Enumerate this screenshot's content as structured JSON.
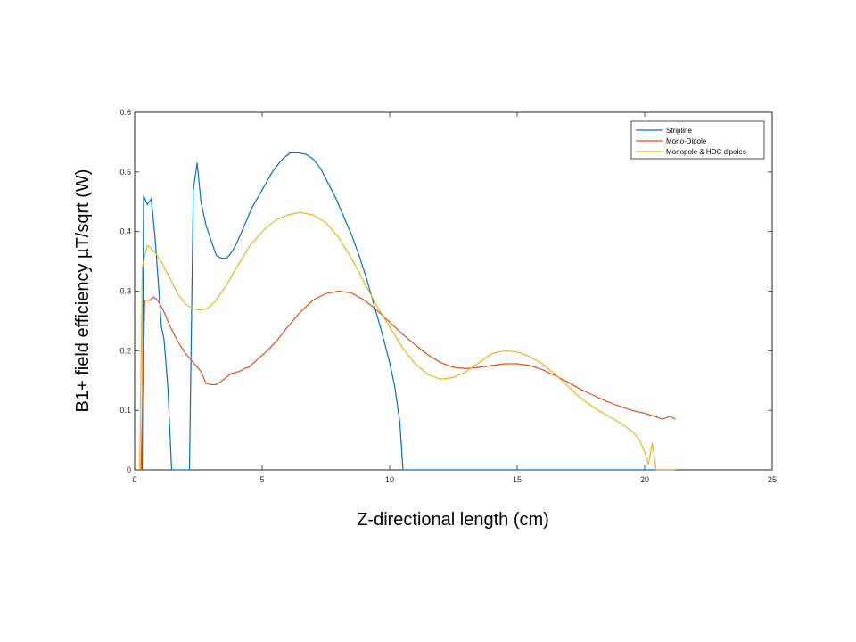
{
  "chart_data": {
    "type": "line",
    "title": "",
    "xlabel": "Z-directional length (cm)",
    "ylabel": "B1+ field efficiency µT/sqrt (W)",
    "xlim": [
      0,
      25
    ],
    "ylim": [
      0,
      0.6
    ],
    "x_ticks": [
      "0",
      "5",
      "10",
      "15",
      "20",
      "25"
    ],
    "y_ticks": [
      "0",
      "0.1",
      "0.2",
      "0.3",
      "0.4",
      "0.5",
      "0.6"
    ],
    "grid": false,
    "legend_position": "top-right",
    "series": [
      {
        "name": "Stripline",
        "color": "#0072BD",
        "points": [
          [
            0.3,
            0
          ],
          [
            0.35,
            0.46
          ],
          [
            0.5,
            0.445
          ],
          [
            0.65,
            0.455
          ],
          [
            0.8,
            0.39
          ],
          [
            0.95,
            0.3
          ],
          [
            1.05,
            0.24
          ],
          [
            1.15,
            0.22
          ],
          [
            1.3,
            0.14
          ],
          [
            1.45,
            0
          ],
          [
            2.15,
            0
          ],
          [
            2.3,
            0.47
          ],
          [
            2.45,
            0.515
          ],
          [
            2.6,
            0.45
          ],
          [
            2.8,
            0.41
          ],
          [
            3.0,
            0.385
          ],
          [
            3.2,
            0.36
          ],
          [
            3.4,
            0.355
          ],
          [
            3.6,
            0.355
          ],
          [
            3.8,
            0.365
          ],
          [
            4.0,
            0.38
          ],
          [
            4.3,
            0.41
          ],
          [
            4.6,
            0.44
          ],
          [
            5.0,
            0.47
          ],
          [
            5.4,
            0.5
          ],
          [
            5.8,
            0.522
          ],
          [
            6.1,
            0.532
          ],
          [
            6.4,
            0.532
          ],
          [
            6.7,
            0.53
          ],
          [
            7.0,
            0.522
          ],
          [
            7.3,
            0.505
          ],
          [
            7.6,
            0.48
          ],
          [
            7.9,
            0.455
          ],
          [
            8.2,
            0.425
          ],
          [
            8.5,
            0.395
          ],
          [
            8.8,
            0.36
          ],
          [
            9.1,
            0.32
          ],
          [
            9.4,
            0.275
          ],
          [
            9.7,
            0.23
          ],
          [
            10.0,
            0.18
          ],
          [
            10.2,
            0.14
          ],
          [
            10.4,
            0.08
          ],
          [
            10.52,
            0
          ],
          [
            21.2,
            0
          ]
        ]
      },
      {
        "name": "Mono-Dipole",
        "color": "#D95319",
        "points": [
          [
            0.25,
            0
          ],
          [
            0.4,
            0.285
          ],
          [
            0.6,
            0.285
          ],
          [
            0.75,
            0.29
          ],
          [
            0.9,
            0.285
          ],
          [
            1.1,
            0.27
          ],
          [
            1.4,
            0.24
          ],
          [
            1.7,
            0.215
          ],
          [
            2.0,
            0.195
          ],
          [
            2.3,
            0.18
          ],
          [
            2.6,
            0.165
          ],
          [
            2.8,
            0.145
          ],
          [
            3.0,
            0.143
          ],
          [
            3.2,
            0.143
          ],
          [
            3.5,
            0.152
          ],
          [
            3.8,
            0.162
          ],
          [
            4.1,
            0.165
          ],
          [
            4.3,
            0.17
          ],
          [
            4.5,
            0.173
          ],
          [
            4.8,
            0.185
          ],
          [
            5.2,
            0.2
          ],
          [
            5.6,
            0.218
          ],
          [
            6.0,
            0.24
          ],
          [
            6.5,
            0.265
          ],
          [
            7.0,
            0.285
          ],
          [
            7.5,
            0.296
          ],
          [
            8.0,
            0.3
          ],
          [
            8.5,
            0.297
          ],
          [
            9.0,
            0.285
          ],
          [
            9.5,
            0.268
          ],
          [
            10.0,
            0.248
          ],
          [
            10.5,
            0.228
          ],
          [
            11.0,
            0.21
          ],
          [
            11.5,
            0.193
          ],
          [
            12.0,
            0.18
          ],
          [
            12.5,
            0.172
          ],
          [
            13.0,
            0.17
          ],
          [
            13.5,
            0.172
          ],
          [
            14.0,
            0.175
          ],
          [
            14.5,
            0.178
          ],
          [
            15.0,
            0.178
          ],
          [
            15.5,
            0.175
          ],
          [
            16.0,
            0.168
          ],
          [
            16.5,
            0.158
          ],
          [
            17.0,
            0.147
          ],
          [
            17.5,
            0.135
          ],
          [
            18.0,
            0.125
          ],
          [
            18.5,
            0.115
          ],
          [
            19.0,
            0.107
          ],
          [
            19.5,
            0.1
          ],
          [
            20.0,
            0.095
          ],
          [
            20.4,
            0.09
          ],
          [
            20.7,
            0.085
          ],
          [
            21.0,
            0.09
          ],
          [
            21.2,
            0.085
          ]
        ]
      },
      {
        "name": "Monopole & HDC dipoles",
        "color": "#EDB120",
        "points": [
          [
            0.2,
            0
          ],
          [
            0.3,
            0.34
          ],
          [
            0.5,
            0.377
          ],
          [
            0.8,
            0.365
          ],
          [
            1.1,
            0.345
          ],
          [
            1.4,
            0.32
          ],
          [
            1.7,
            0.295
          ],
          [
            2.0,
            0.278
          ],
          [
            2.3,
            0.27
          ],
          [
            2.6,
            0.268
          ],
          [
            2.9,
            0.272
          ],
          [
            3.2,
            0.285
          ],
          [
            3.6,
            0.31
          ],
          [
            4.0,
            0.34
          ],
          [
            4.5,
            0.375
          ],
          [
            5.0,
            0.4
          ],
          [
            5.5,
            0.418
          ],
          [
            6.0,
            0.428
          ],
          [
            6.5,
            0.432
          ],
          [
            7.0,
            0.428
          ],
          [
            7.5,
            0.415
          ],
          [
            8.0,
            0.39
          ],
          [
            8.5,
            0.355
          ],
          [
            9.0,
            0.315
          ],
          [
            9.5,
            0.275
          ],
          [
            10.0,
            0.24
          ],
          [
            10.5,
            0.205
          ],
          [
            11.0,
            0.178
          ],
          [
            11.5,
            0.16
          ],
          [
            12.0,
            0.152
          ],
          [
            12.5,
            0.155
          ],
          [
            13.0,
            0.165
          ],
          [
            13.5,
            0.18
          ],
          [
            14.0,
            0.195
          ],
          [
            14.5,
            0.2
          ],
          [
            15.0,
            0.198
          ],
          [
            15.5,
            0.19
          ],
          [
            16.0,
            0.178
          ],
          [
            16.5,
            0.16
          ],
          [
            17.0,
            0.14
          ],
          [
            17.5,
            0.12
          ],
          [
            18.0,
            0.105
          ],
          [
            18.5,
            0.092
          ],
          [
            19.0,
            0.08
          ],
          [
            19.5,
            0.065
          ],
          [
            19.8,
            0.05
          ],
          [
            20.0,
            0.03
          ],
          [
            20.15,
            0.01
          ],
          [
            20.3,
            0.045
          ],
          [
            20.45,
            0
          ],
          [
            21.2,
            0
          ]
        ]
      }
    ]
  }
}
